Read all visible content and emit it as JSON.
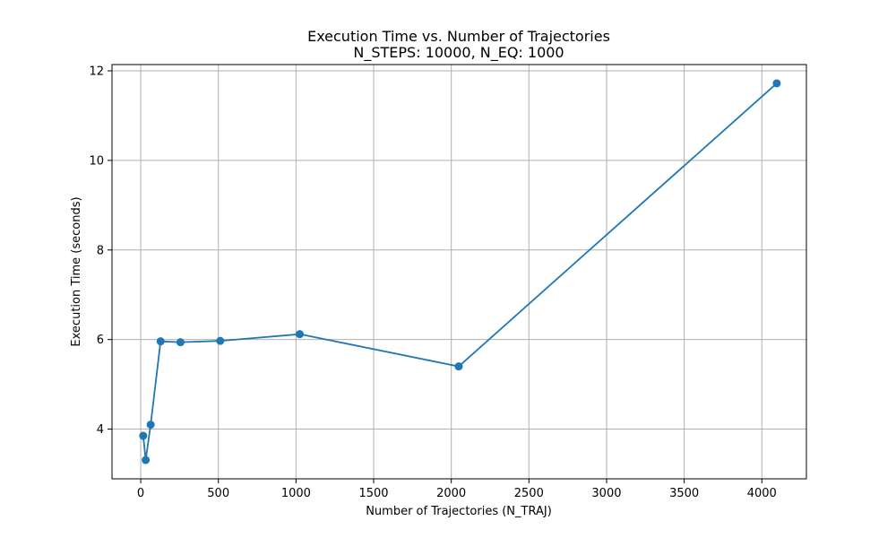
{
  "chart_data": {
    "type": "line",
    "title": "Execution Time vs. Number of Trajectories",
    "subtitle": "N_STEPS: 10000, N_EQ: 1000",
    "xlabel": "Number of Trajectories (N_TRAJ)",
    "ylabel": "Execution Time (seconds)",
    "xlim": [
      -185,
      4287
    ],
    "ylim": [
      2.89,
      12.14
    ],
    "xticks": [
      0,
      500,
      1000,
      1500,
      2000,
      2500,
      3000,
      3500,
      4000
    ],
    "xtick_labels": [
      "0",
      "500",
      "1000",
      "1500",
      "2000",
      "2500",
      "3000",
      "3500",
      "4000"
    ],
    "yticks": [
      4,
      6,
      8,
      10,
      12
    ],
    "ytick_labels": [
      "4",
      "6",
      "8",
      "10",
      "12"
    ],
    "grid": true,
    "marker": "circle",
    "color": "#1f77b4",
    "series": [
      {
        "x": [
          16,
          32,
          64,
          128,
          256,
          512,
          1024,
          2048,
          4096
        ],
        "y": [
          3.85,
          3.31,
          4.1,
          5.96,
          5.94,
          5.97,
          6.12,
          5.4,
          11.72
        ]
      }
    ]
  }
}
